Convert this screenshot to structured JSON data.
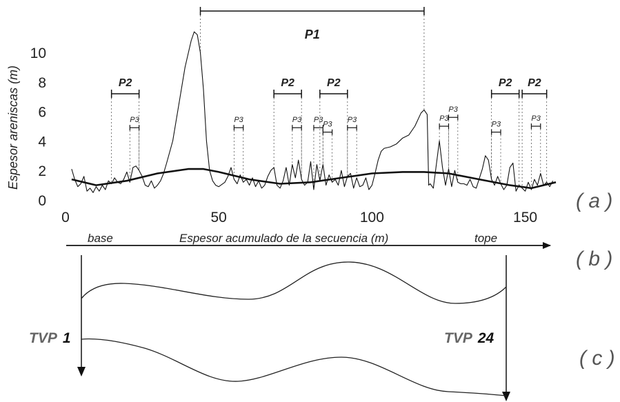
{
  "chart_data": {
    "type": "line",
    "xlabel": "Espesor acumulado de la secuencia (m)",
    "ylabel": "Espesor areniscas (m)",
    "x_ticks": [
      "0",
      "50",
      "100",
      "150"
    ],
    "y_ticks": [
      "0",
      "2",
      "4",
      "6",
      "8",
      "10"
    ],
    "xlim": [
      0,
      160
    ],
    "ylim": [
      0,
      11.5
    ],
    "series": [
      {
        "style": "thin",
        "points": [
          [
            2,
            2.1
          ],
          [
            3,
            1.4
          ],
          [
            4,
            0.9
          ],
          [
            5,
            1.1
          ],
          [
            6,
            1.6
          ],
          [
            7,
            0.6
          ],
          [
            8,
            0.8
          ],
          [
            9,
            0.5
          ],
          [
            10,
            0.9
          ],
          [
            11,
            0.6
          ],
          [
            12,
            1.0
          ],
          [
            13,
            0.7
          ],
          [
            14,
            1.3
          ],
          [
            15,
            1.1
          ],
          [
            16,
            1.5
          ],
          [
            17,
            1.2
          ],
          [
            18,
            1.1
          ],
          [
            19,
            1.4
          ],
          [
            20,
            1.9
          ],
          [
            21,
            1.2
          ],
          [
            22,
            2.2
          ],
          [
            23,
            2.3
          ],
          [
            24,
            2.0
          ],
          [
            25,
            1.6
          ],
          [
            26,
            1.0
          ],
          [
            27,
            0.9
          ],
          [
            28,
            1.3
          ],
          [
            29,
            0.8
          ],
          [
            30,
            1.0
          ],
          [
            31,
            1.3
          ],
          [
            32,
            1.8
          ],
          [
            33,
            2.5
          ],
          [
            35,
            4.0
          ],
          [
            37,
            6.5
          ],
          [
            39,
            9.0
          ],
          [
            41,
            10.8
          ],
          [
            42,
            11.4
          ],
          [
            43,
            11.2
          ],
          [
            44,
            10.0
          ],
          [
            45,
            7.5
          ],
          [
            46,
            4.0
          ],
          [
            47,
            2.0
          ],
          [
            48,
            1.3
          ],
          [
            49,
            1.0
          ],
          [
            50,
            0.9
          ],
          [
            52,
            1.2
          ],
          [
            53,
            1.6
          ],
          [
            54,
            2.2
          ],
          [
            55,
            1.4
          ],
          [
            56,
            1.1
          ],
          [
            57,
            1.7
          ],
          [
            58,
            1.2
          ],
          [
            59,
            1.4
          ],
          [
            60,
            1.0
          ],
          [
            61,
            1.5
          ],
          [
            62,
            0.9
          ],
          [
            63,
            1.3
          ],
          [
            64,
            0.8
          ],
          [
            65,
            1.0
          ],
          [
            66,
            1.6
          ],
          [
            67,
            2.0
          ],
          [
            68,
            2.2
          ],
          [
            69,
            1.0
          ],
          [
            70,
            0.8
          ],
          [
            71,
            1.3
          ],
          [
            72,
            2.2
          ],
          [
            73,
            1.0
          ],
          [
            74,
            2.4
          ],
          [
            75,
            1.5
          ],
          [
            76,
            2.7
          ],
          [
            77,
            1.4
          ],
          [
            78,
            1.0
          ],
          [
            79,
            1.2
          ],
          [
            80,
            2.6
          ],
          [
            81,
            0.7
          ],
          [
            82,
            2.4
          ],
          [
            83,
            1.3
          ],
          [
            84,
            2.4
          ],
          [
            85,
            1.0
          ],
          [
            86,
            1.7
          ],
          [
            87,
            1.2
          ],
          [
            88,
            1.4
          ],
          [
            89,
            1.0
          ],
          [
            90,
            2.0
          ],
          [
            91,
            0.9
          ],
          [
            92,
            1.6
          ],
          [
            93,
            1.8
          ],
          [
            94,
            0.8
          ],
          [
            95,
            1.5
          ],
          [
            96,
            0.9
          ],
          [
            97,
            1.0
          ],
          [
            98,
            1.5
          ],
          [
            99,
            0.7
          ],
          [
            100,
            1.0
          ],
          [
            101,
            1.8
          ],
          [
            102,
            2.7
          ],
          [
            103,
            3.3
          ],
          [
            104,
            3.5
          ],
          [
            106,
            3.6
          ],
          [
            108,
            3.8
          ],
          [
            110,
            4.2
          ],
          [
            112,
            4.4
          ],
          [
            114,
            5.0
          ],
          [
            116,
            5.9
          ],
          [
            117,
            6.1
          ],
          [
            118,
            5.8
          ],
          [
            118.5,
            1.0
          ],
          [
            119,
            1.1
          ],
          [
            120,
            0.8
          ],
          [
            121,
            2.4
          ],
          [
            122,
            4.0
          ],
          [
            123,
            2.2
          ],
          [
            124,
            1.0
          ],
          [
            125,
            2.1
          ],
          [
            126,
            0.9
          ],
          [
            127,
            2.0
          ],
          [
            128,
            1.2
          ],
          [
            129,
            1.1
          ],
          [
            130,
            1.1
          ],
          [
            131,
            1.0
          ],
          [
            132,
            1.4
          ],
          [
            133,
            0.9
          ],
          [
            134,
            0.8
          ],
          [
            136,
            2.1
          ],
          [
            137,
            3.0
          ],
          [
            138,
            2.7
          ],
          [
            139,
            1.4
          ],
          [
            140,
            1.0
          ],
          [
            141,
            1.6
          ],
          [
            142,
            1.1
          ],
          [
            143,
            0.7
          ],
          [
            144,
            1.0
          ],
          [
            145,
            2.2
          ],
          [
            146,
            2.5
          ],
          [
            147,
            0.6
          ],
          [
            148,
            1.0
          ],
          [
            149,
            0.8
          ],
          [
            150,
            0.6
          ],
          [
            151,
            1.2
          ],
          [
            152,
            0.7
          ],
          [
            153,
            1.4
          ],
          [
            154,
            1.0
          ],
          [
            155,
            1.8
          ],
          [
            156,
            1.0
          ],
          [
            157,
            1.2
          ],
          [
            158,
            0.9
          ],
          [
            159,
            1.3
          ]
        ]
      },
      {
        "style": "thick",
        "points": [
          [
            2,
            1.4
          ],
          [
            10,
            1.0
          ],
          [
            20,
            1.3
          ],
          [
            30,
            1.8
          ],
          [
            40,
            2.1
          ],
          [
            45,
            2.1
          ],
          [
            50,
            1.9
          ],
          [
            60,
            1.4
          ],
          [
            70,
            1.1
          ],
          [
            80,
            1.2
          ],
          [
            90,
            1.5
          ],
          [
            100,
            1.8
          ],
          [
            110,
            1.9
          ],
          [
            117,
            1.9
          ],
          [
            125,
            1.8
          ],
          [
            135,
            1.4
          ],
          [
            145,
            1.0
          ],
          [
            152,
            0.8
          ],
          [
            160,
            1.2
          ]
        ]
      }
    ],
    "brackets": [
      {
        "label": "P1",
        "x1": 44,
        "x2": 117,
        "y": 12.8,
        "size": "large"
      },
      {
        "label": "P2",
        "x1": 15,
        "x2": 24,
        "y": 7.2,
        "size": "medium"
      },
      {
        "label": "P2",
        "x1": 68,
        "x2": 77,
        "y": 7.2,
        "size": "medium"
      },
      {
        "label": "P2",
        "x1": 83,
        "x2": 92,
        "y": 7.2,
        "size": "medium"
      },
      {
        "label": "P2",
        "x1": 139,
        "x2": 148,
        "y": 7.2,
        "size": "medium"
      },
      {
        "label": "P2",
        "x1": 149,
        "x2": 157,
        "y": 7.2,
        "size": "medium"
      },
      {
        "label": "P3",
        "x1": 21,
        "x2": 24,
        "y": 4.9,
        "size": "small"
      },
      {
        "label": "P3",
        "x1": 55,
        "x2": 58,
        "y": 4.9,
        "size": "small"
      },
      {
        "label": "P3",
        "x1": 74,
        "x2": 77,
        "y": 4.9,
        "size": "small"
      },
      {
        "label": "P3",
        "x1": 81,
        "x2": 84,
        "y": 4.9,
        "size": "small"
      },
      {
        "label": "P3",
        "x1": 84,
        "x2": 87,
        "y": 4.6,
        "size": "small"
      },
      {
        "label": "P3",
        "x1": 92,
        "x2": 95,
        "y": 4.9,
        "size": "small"
      },
      {
        "label": "P3",
        "x1": 122,
        "x2": 125,
        "y": 5.0,
        "size": "small"
      },
      {
        "label": "P3",
        "x1": 125,
        "x2": 128,
        "y": 5.6,
        "size": "small"
      },
      {
        "label": "P3",
        "x1": 139,
        "x2": 142,
        "y": 4.6,
        "size": "small"
      },
      {
        "label": "P3",
        "x1": 152,
        "x2": 155,
        "y": 5.0,
        "size": "small"
      }
    ]
  },
  "panel_labels": {
    "a": "( a )",
    "b": "( b )",
    "c": "( c )"
  },
  "section_b": {
    "base": "base",
    "top": "tope"
  },
  "section_c": {
    "left_prefix": "TVP",
    "left_number": "1",
    "right_prefix": "TVP",
    "right_number": "24"
  }
}
